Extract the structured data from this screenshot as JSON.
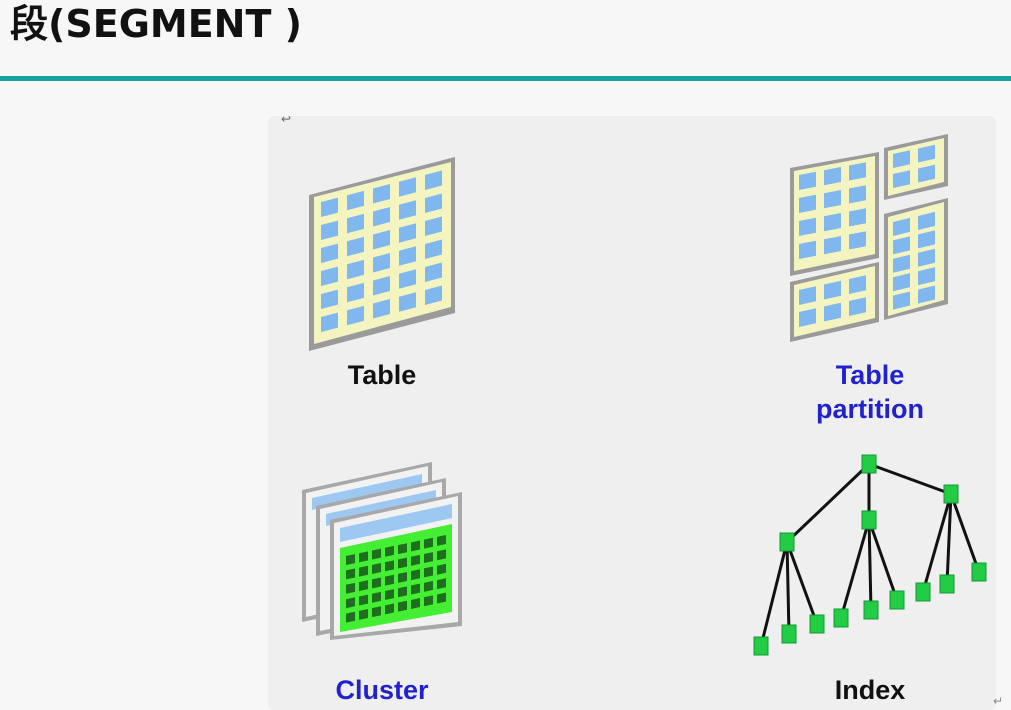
{
  "slide": {
    "title": "段(SEGMENT )"
  },
  "segments": [
    {
      "label": "Table",
      "icon": "table-icon",
      "label_color": "#111111"
    },
    {
      "label_line1": "Table",
      "label_line2": "partition",
      "icon": "table-partition-icon",
      "label_color": "#2222cc"
    },
    {
      "label": "Cluster",
      "icon": "cluster-icon",
      "label_color": "#2222cc"
    },
    {
      "label": "Index",
      "icon": "index-tree-icon",
      "label_color": "#111111"
    }
  ],
  "colors": {
    "accent_rule": "#1aa3a3",
    "grid_fill": "#f4f4c0",
    "cell_fill": "#7fb7ee",
    "cluster_fill": "#44ee33",
    "index_node": "#22cc44"
  }
}
